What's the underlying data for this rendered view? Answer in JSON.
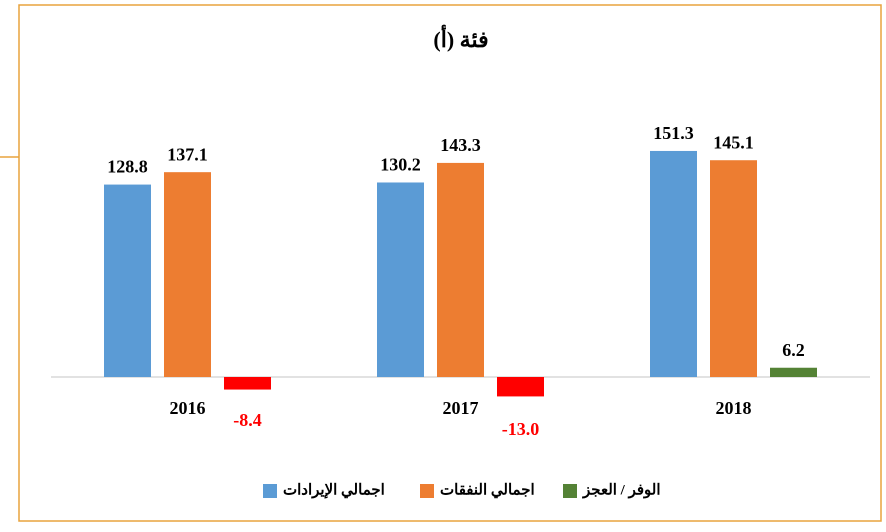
{
  "chart_data": {
    "type": "bar",
    "title": "فئة (أ)",
    "categories": [
      "2016",
      "2017",
      "2018"
    ],
    "series": [
      {
        "name": "اجمالي الإيرادات",
        "color": "#5b9bd5",
        "values": [
          128.8,
          130.2,
          151.3
        ]
      },
      {
        "name": "اجمالي النفقات",
        "color": "#ed7d31",
        "values": [
          137.1,
          143.3,
          145.1
        ]
      },
      {
        "name": "الوفر / العجز",
        "color": "#548235",
        "point_colors": [
          "#ff0000",
          "#ff0000",
          "#548235"
        ],
        "values": [
          -8.4,
          -13.0,
          6.2
        ],
        "value_labels": [
          "-8.4",
          "-13.0",
          "6.2"
        ]
      }
    ],
    "legend": "bottom"
  }
}
